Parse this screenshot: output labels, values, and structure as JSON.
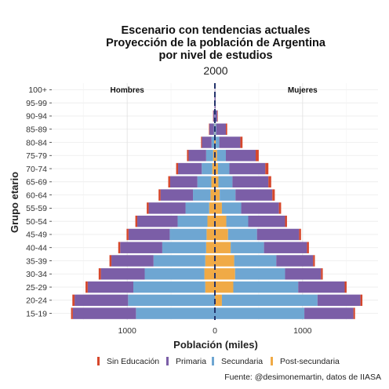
{
  "chart_data": {
    "type": "bar",
    "orientation": "horizontal",
    "subtype": "population-pyramid",
    "title_lines": [
      "Escenario con tendencias actuales",
      "Proyección de la población de  Argentina",
      "por nivel de estudios"
    ],
    "facet_label": "2000",
    "xlabel": "Población (miles)",
    "ylabel": "Grupo etario",
    "x_tick_labels": [
      "1000",
      "0",
      "1000"
    ],
    "xlim": [
      -1860,
      1860
    ],
    "male_label": "Hombres",
    "female_label": "Mujeres",
    "categories": [
      "15-19",
      "20-24",
      "25-29",
      "30-34",
      "35-39",
      "40-44",
      "45-49",
      "50-54",
      "55-59",
      "60-64",
      "65-69",
      "70-74",
      "75-79",
      "80-84",
      "85-89",
      "90-94",
      "95-99",
      "100+"
    ],
    "series": [
      {
        "name": "Sin Educación",
        "color": "#d6472b",
        "male": [
          20,
          25,
          25,
          25,
          22,
          22,
          22,
          22,
          22,
          22,
          22,
          22,
          18,
          10,
          5,
          3,
          0,
          0
        ],
        "female": [
          18,
          22,
          22,
          20,
          20,
          22,
          22,
          22,
          25,
          28,
          32,
          35,
          35,
          25,
          15,
          5,
          0,
          0
        ]
      },
      {
        "name": "Primaria",
        "color": "#7b5ea7",
        "male": [
          720,
          610,
          520,
          500,
          480,
          480,
          470,
          460,
          420,
          370,
          310,
          270,
          200,
          110,
          50,
          15,
          5,
          2
        ],
        "female": [
          560,
          490,
          530,
          410,
          420,
          490,
          480,
          420,
          430,
          420,
          410,
          410,
          340,
          240,
          110,
          25,
          8,
          3
        ]
      },
      {
        "name": "Secundaria",
        "color": "#6ea6d2",
        "male": [
          900,
          990,
          820,
          680,
          590,
          500,
          420,
          340,
          270,
          200,
          160,
          120,
          80,
          30,
          10,
          3,
          0,
          0
        ],
        "female": [
          1020,
          1090,
          740,
          570,
          480,
          380,
          330,
          250,
          220,
          180,
          160,
          130,
          100,
          40,
          12,
          3,
          0,
          0
        ]
      },
      {
        "name": "Post-secundaria",
        "color": "#f0aa46",
        "male": [
          0,
          0,
          110,
          120,
          110,
          100,
          95,
          85,
          65,
          50,
          40,
          30,
          20,
          8,
          3,
          0,
          0,
          0
        ],
        "female": [
          0,
          80,
          210,
          230,
          220,
          180,
          150,
          130,
          80,
          55,
          40,
          35,
          25,
          10,
          3,
          0,
          0,
          0
        ]
      }
    ],
    "grid": true,
    "legend_position": "bottom",
    "caption": "Fuente: @desimonemartin, datos de IIASA"
  }
}
